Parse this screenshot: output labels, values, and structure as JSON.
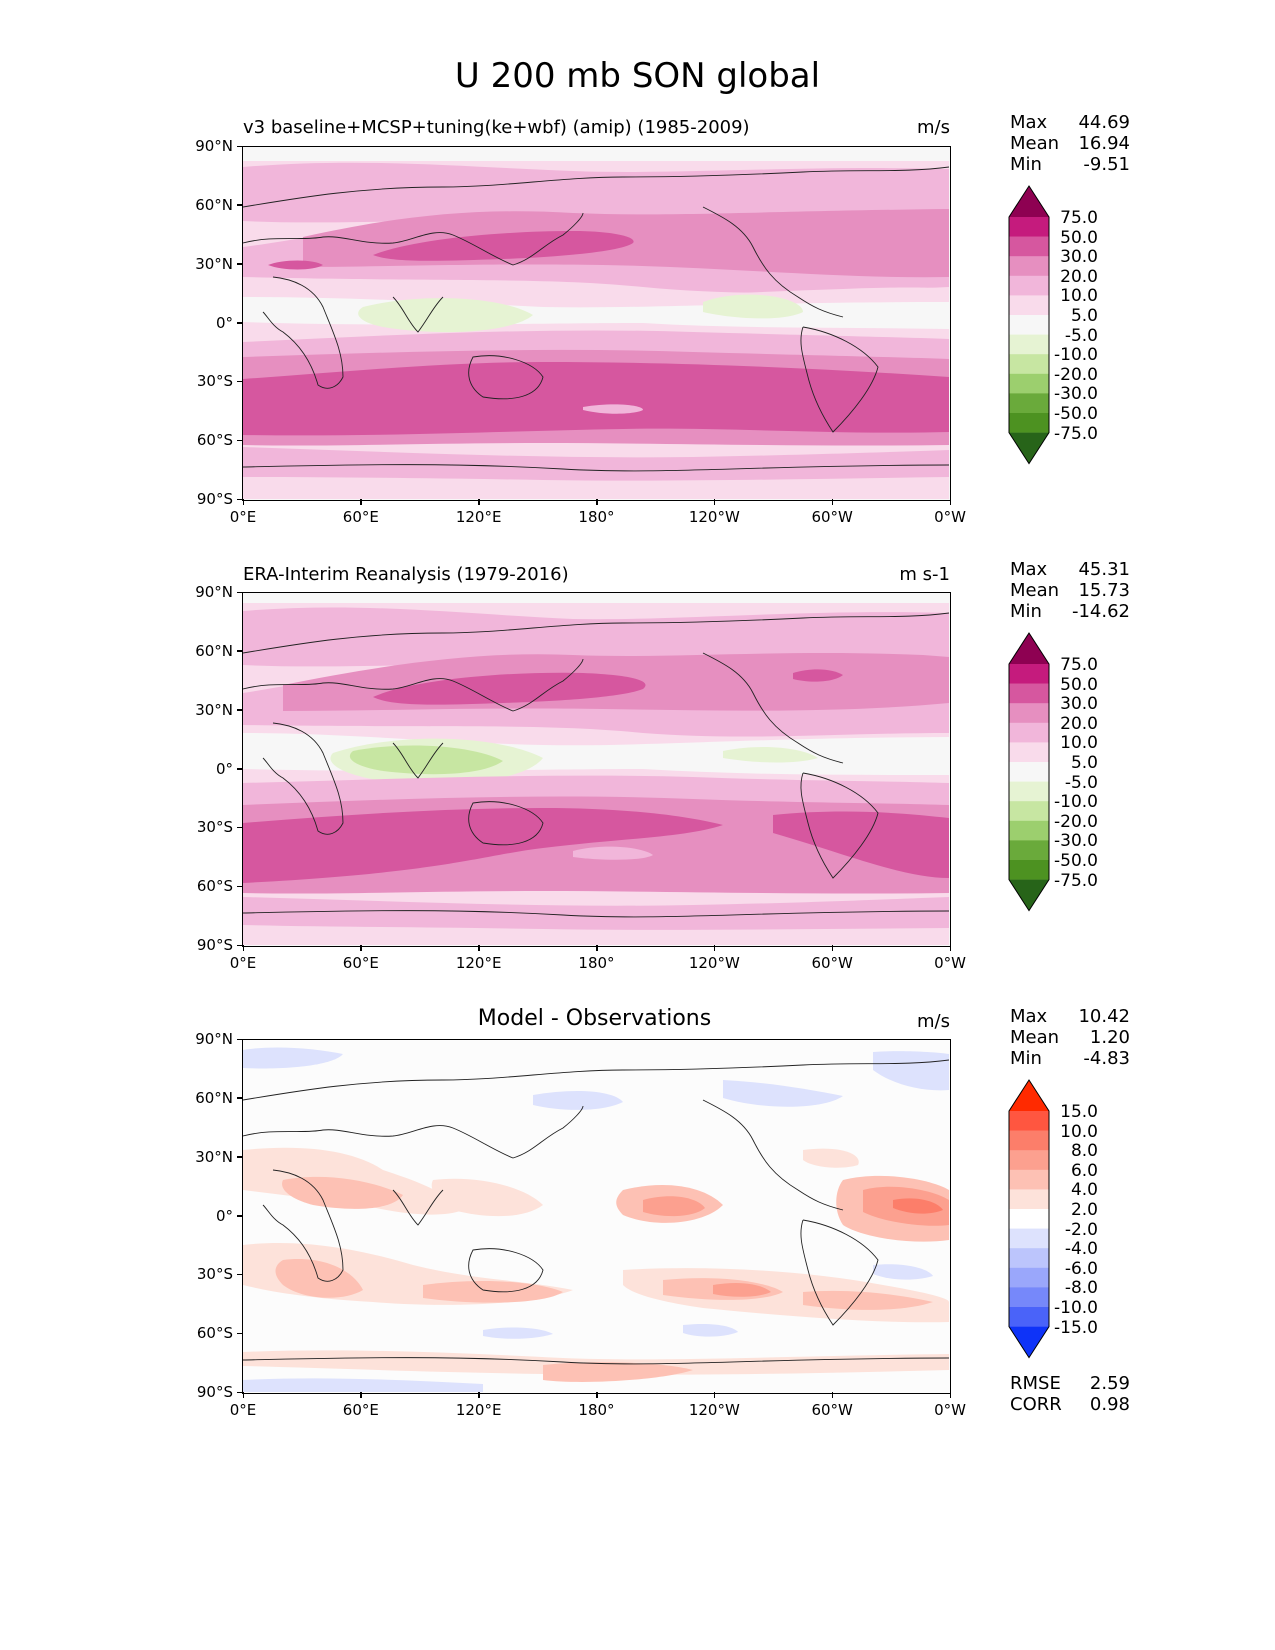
{
  "main_title": "U 200 mb SON global",
  "x_ticks": [
    "0°E",
    "60°E",
    "120°E",
    "180°",
    "120°W",
    "60°W",
    "0°W"
  ],
  "y_ticks": [
    "90°N",
    "60°N",
    "30°N",
    "0°",
    "30°S",
    "60°S",
    "90°S"
  ],
  "panels": [
    {
      "title": "v3 baseline+MCSP+tuning(ke+wbf) (amip) (1985-2009)",
      "units": "m/s",
      "stats": {
        "max_label": "Max",
        "max": "44.69",
        "mean_label": "Mean",
        "mean": "16.94",
        "min_label": "Min",
        "min": "-9.51"
      }
    },
    {
      "title": "ERA-Interim Reanalysis (1979-2016)",
      "units": "m s-1",
      "stats": {
        "max_label": "Max",
        "max": "45.31",
        "mean_label": "Mean",
        "mean": "15.73",
        "min_label": "Min",
        "min": "-14.62"
      }
    },
    {
      "title": "Model - Observations",
      "units": "m/s",
      "stats": {
        "max_label": "Max",
        "max": "10.42",
        "mean_label": "Mean",
        "mean": "1.20",
        "min_label": "Min",
        "min": "-4.83"
      },
      "rmse_label": "RMSE",
      "rmse": "2.59",
      "corr_label": "CORR",
      "corr": "0.98"
    }
  ],
  "colorbar_field": {
    "levels": [
      "75.0",
      "50.0",
      "30.0",
      "20.0",
      "10.0",
      "5.0",
      "-5.0",
      "-10.0",
      "-20.0",
      "-30.0",
      "-50.0",
      "-75.0"
    ],
    "colors": [
      "#8e0152",
      "#c51b7d",
      "#d6579f",
      "#e68fc0",
      "#f1b6da",
      "#f9dbeb",
      "#f7f7f7",
      "#e6f3d3",
      "#c7e6a2",
      "#9ccf6e",
      "#6aaa3b",
      "#4d9221",
      "#276419"
    ]
  },
  "colorbar_diff": {
    "levels": [
      "15.0",
      "10.0",
      "8.0",
      "6.0",
      "4.0",
      "2.0",
      "-2.0",
      "-4.0",
      "-6.0",
      "-8.0",
      "-10.0",
      "-15.0"
    ],
    "colors": [
      "#ff2a00",
      "#ff5640",
      "#fc7e6a",
      "#fca08f",
      "#fdc1b4",
      "#fde2da",
      "#ffffff",
      "#dde2fd",
      "#bcc5fc",
      "#9aa7fb",
      "#7688fa",
      "#4a63f9",
      "#0e33f8"
    ]
  }
}
